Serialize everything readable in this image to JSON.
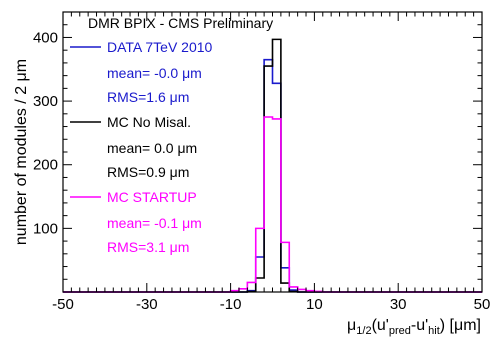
{
  "chart_data": {
    "type": "histogram",
    "title": "DMR BPIX - CMS Preliminary",
    "xlabel": {
      "pre": "μ",
      "sub1": "1/2",
      "open": "(u'",
      "sub2": "pred",
      "mid": "-u'",
      "sub3": "hit",
      "post": ") [μm]"
    },
    "ylabel": "number of modules / 2 μm",
    "xlim": [
      -50,
      50
    ],
    "ylim": [
      0,
      440
    ],
    "bin_width": 2,
    "x_ticks": [
      -50,
      -30,
      -10,
      10,
      30,
      50
    ],
    "y_ticks": [
      100,
      200,
      300,
      400
    ],
    "grid": false,
    "legend_position": "top-left",
    "series": [
      {
        "name": "DATA 7TeV 2010",
        "color": "#1a1acc",
        "stats": [
          "mean= -0.0 μm",
          "RMS=1.6 μm"
        ],
        "bin_edges": [
          -6,
          -4,
          -2,
          0,
          2,
          4,
          6
        ],
        "values": [
          2,
          55,
          365,
          328,
          38,
          3
        ]
      },
      {
        "name": "MC No Misal.",
        "color": "#000000",
        "stats": [
          "mean= 0.0 μm",
          "RMS=0.9 μm"
        ],
        "bin_edges": [
          -6,
          -4,
          -2,
          0,
          2,
          4,
          6
        ],
        "values": [
          1,
          22,
          355,
          397,
          14,
          1
        ]
      },
      {
        "name": "MC STARTUP",
        "color": "#ff00ff",
        "stats": [
          "mean= -0.1 μm",
          "RMS=3.1 μm"
        ],
        "bin_edges": [
          -10,
          -8,
          -6,
          -4,
          -2,
          0,
          2,
          4,
          6,
          8,
          10,
          12
        ],
        "values": [
          2,
          5,
          15,
          100,
          275,
          272,
          78,
          8,
          4,
          2,
          1
        ]
      }
    ]
  }
}
